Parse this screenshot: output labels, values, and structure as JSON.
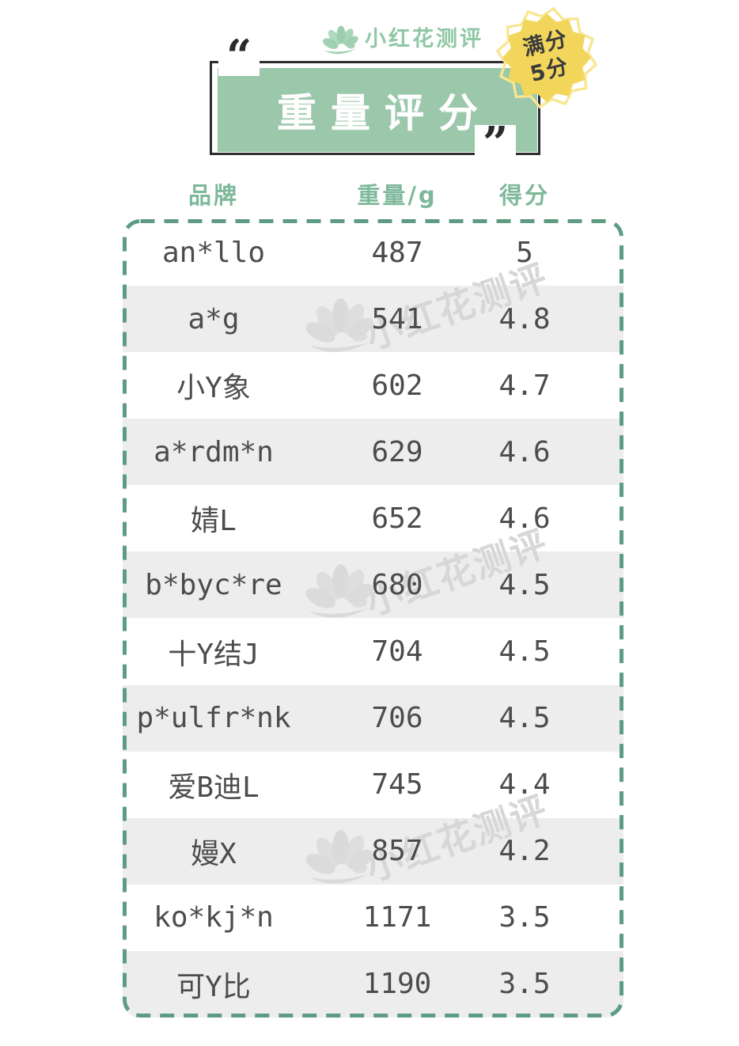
{
  "brand": {
    "name": "小红花测评"
  },
  "badge": {
    "line1": "满分",
    "line2": "5分"
  },
  "quotes": {
    "open": "“",
    "close": "”"
  },
  "watermark": {
    "text": "小红花测评"
  },
  "chart_data": {
    "type": "table",
    "title": "重量评分",
    "columns": [
      "品牌",
      "重量/g",
      "得分"
    ],
    "rows": [
      [
        "an*llo",
        "487",
        "5"
      ],
      [
        "a*g",
        "541",
        "4.8"
      ],
      [
        "小Y象",
        "602",
        "4.7"
      ],
      [
        "a*rdm*n",
        "629",
        "4.6"
      ],
      [
        "婧L",
        "652",
        "4.6"
      ],
      [
        "b*byc*re",
        "680",
        "4.5"
      ],
      [
        "十Y结J",
        "704",
        "4.5"
      ],
      [
        "p*ulfr*nk",
        "706",
        "4.5"
      ],
      [
        "爱B迪L",
        "745",
        "4.4"
      ],
      [
        "嫚X",
        "857",
        "4.2"
      ],
      [
        "ko*kj*n",
        "1171",
        "3.5"
      ],
      [
        "可Y比",
        "1190",
        "3.5"
      ]
    ],
    "score_max": 5,
    "layout": {
      "row_striping": "alternate-gray",
      "border": "green-dashed-rounded"
    }
  },
  "colors": {
    "title_box_green": "#9bc7ab",
    "header_green": "#7eb89a",
    "dash_green": "#5d9c83",
    "badge_yellow": "#f2d65c",
    "badge_outline_yellow": "#f7e792",
    "row_alt_gray": "#ededed",
    "cell_text": "#4c4c4c",
    "ink": "#2c2c2c",
    "logo_green": "#8fc7a5",
    "watermark_gray": "#d9d9d9"
  }
}
